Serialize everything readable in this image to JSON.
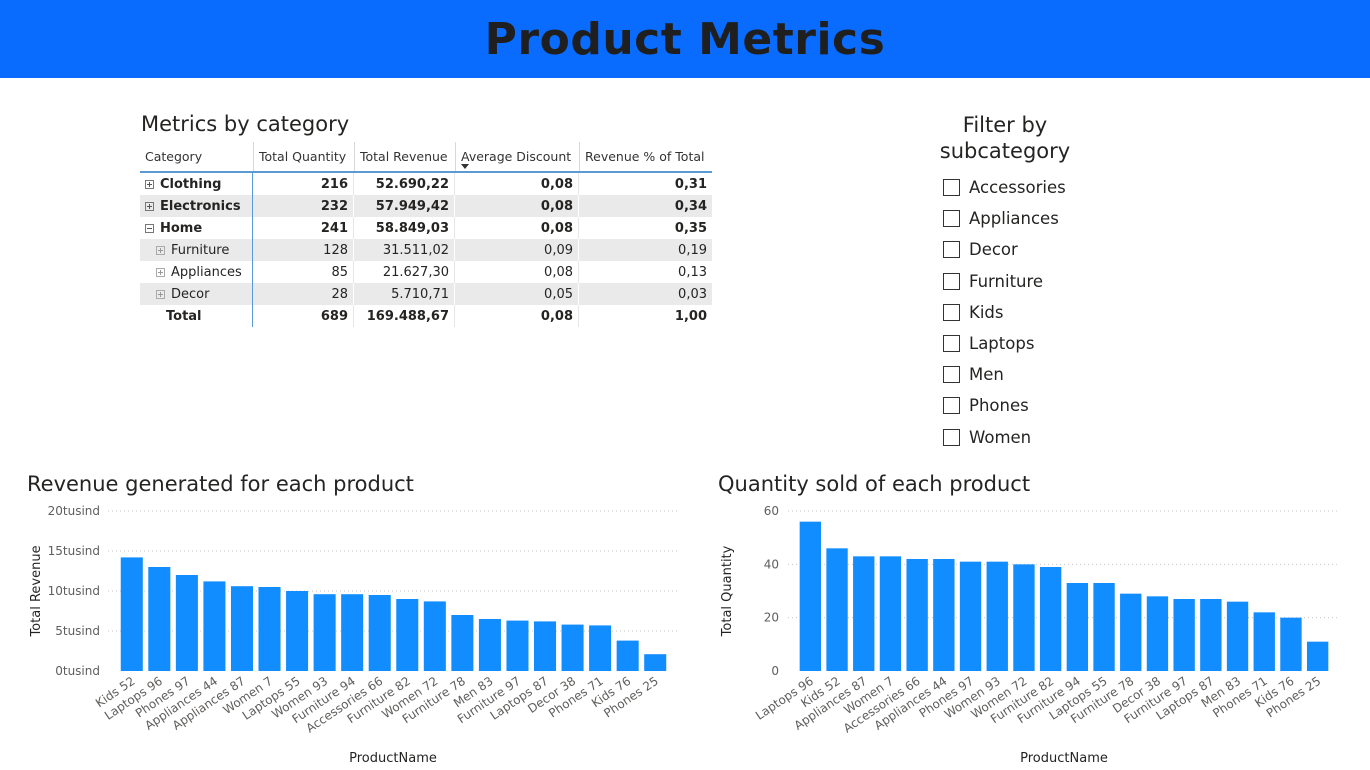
{
  "header": {
    "title": "Product Metrics"
  },
  "matrix": {
    "title": "Metrics by category",
    "columns": [
      "Category",
      "Total Quantity",
      "Total Revenue",
      "Average Discount",
      "Revenue % of Total"
    ],
    "rows": [
      {
        "label": "Clothing",
        "qty": "216",
        "rev": "52.690,22",
        "disc": "0,08",
        "pct": "0,31",
        "level": 0,
        "expanded": false
      },
      {
        "label": "Electronics",
        "qty": "232",
        "rev": "57.949,42",
        "disc": "0,08",
        "pct": "0,34",
        "level": 0,
        "expanded": false
      },
      {
        "label": "Home",
        "qty": "241",
        "rev": "58.849,03",
        "disc": "0,08",
        "pct": "0,35",
        "level": 0,
        "expanded": true
      },
      {
        "label": "Furniture",
        "qty": "128",
        "rev": "31.511,02",
        "disc": "0,09",
        "pct": "0,19",
        "level": 1,
        "expanded": false
      },
      {
        "label": "Appliances",
        "qty": "85",
        "rev": "21.627,30",
        "disc": "0,08",
        "pct": "0,13",
        "level": 1,
        "expanded": false
      },
      {
        "label": "Decor",
        "qty": "28",
        "rev": "5.710,71",
        "disc": "0,05",
        "pct": "0,03",
        "level": 1,
        "expanded": false
      }
    ],
    "total": {
      "label": "Total",
      "qty": "689",
      "rev": "169.488,67",
      "disc": "0,08",
      "pct": "1,00"
    }
  },
  "slicer": {
    "title_line1": "Filter by",
    "title_line2": "subcategory",
    "options": [
      "Accessories",
      "Appliances",
      "Decor",
      "Furniture",
      "Kids",
      "Laptops",
      "Men",
      "Phones",
      "Women"
    ]
  },
  "colors": {
    "header": "#0a6cff",
    "bar": "#118dff",
    "accent": "#5b9bd5"
  },
  "chart_data": [
    {
      "type": "bar",
      "title": "Revenue generated for each product",
      "xlabel": "ProductName",
      "ylabel": "Total Revenue",
      "ylim": [
        0,
        20000
      ],
      "yticks": [
        0,
        5000,
        10000,
        15000,
        20000
      ],
      "ytick_labels": [
        "0tusind",
        "5tusind",
        "10tusind",
        "15tusind",
        "20tusind"
      ],
      "grid": true,
      "categories": [
        "Kids 52",
        "Laptops 96",
        "Phones 97",
        "Appliances 44",
        "Appliances 87",
        "Women 7",
        "Laptops 55",
        "Women 93",
        "Furniture 94",
        "Accessories 66",
        "Furniture 82",
        "Women 72",
        "Furniture 78",
        "Men 83",
        "Furniture 97",
        "Laptops 87",
        "Decor 38",
        "Phones 71",
        "Kids 76",
        "Phones 25"
      ],
      "values": [
        14200,
        13000,
        12000,
        11200,
        10600,
        10500,
        10000,
        9600,
        9600,
        9500,
        9000,
        8700,
        7000,
        6500,
        6300,
        6200,
        5800,
        5700,
        3800,
        2100
      ]
    },
    {
      "type": "bar",
      "title": "Quantity sold of each product",
      "xlabel": "ProductName",
      "ylabel": "Total Quantity",
      "ylim": [
        0,
        60
      ],
      "yticks": [
        0,
        20,
        40,
        60
      ],
      "ytick_labels": [
        "0",
        "20",
        "40",
        "60"
      ],
      "grid": true,
      "categories": [
        "Laptops 96",
        "Kids 52",
        "Appliances 87",
        "Women 7",
        "Accessories 66",
        "Appliances 44",
        "Phones 97",
        "Women 93",
        "Women 72",
        "Furniture 82",
        "Furniture 94",
        "Laptops 55",
        "Furniture 78",
        "Decor 38",
        "Furniture 97",
        "Laptops 87",
        "Men 83",
        "Phones 71",
        "Kids 76",
        "Phones 25"
      ],
      "values": [
        56,
        46,
        43,
        43,
        42,
        42,
        41,
        41,
        40,
        39,
        33,
        33,
        29,
        28,
        27,
        27,
        26,
        22,
        20,
        11
      ]
    }
  ]
}
